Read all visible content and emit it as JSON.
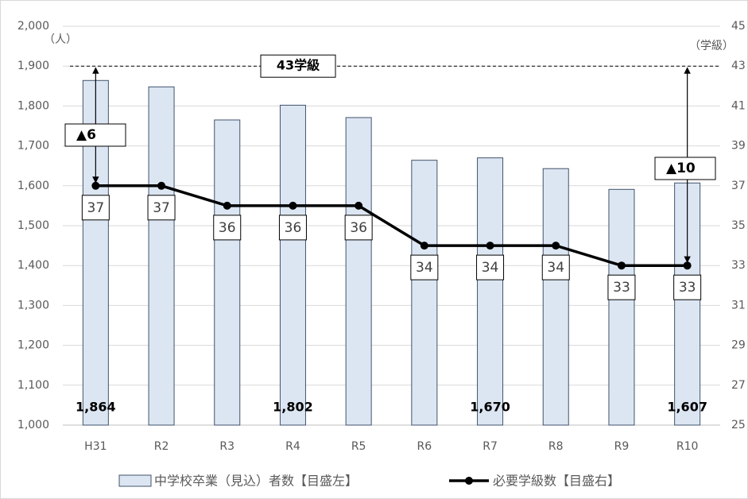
{
  "chart_data": {
    "type": "combo",
    "categories": [
      "H31",
      "R2",
      "R3",
      "R4",
      "R5",
      "R6",
      "R7",
      "R8",
      "R9",
      "R10"
    ],
    "series": [
      {
        "name": "中学校卒業（見込）者数【目盛左】",
        "type": "bar",
        "color": "#dce6f2",
        "stroke": "#41536b",
        "values": [
          1864,
          1848,
          1765,
          1802,
          1771,
          1664,
          1670,
          1643,
          1591,
          1607
        ],
        "value_labels": [
          "1,864",
          null,
          null,
          "1,802",
          null,
          null,
          "1,670",
          null,
          null,
          "1,607"
        ]
      },
      {
        "name": "必要学級数【目盛右】",
        "type": "line",
        "axis": "y2",
        "color": "#000000",
        "values": [
          37,
          37,
          36,
          36,
          36,
          34,
          34,
          34,
          33,
          33
        ]
      }
    ],
    "ylim": [
      1000,
      2000
    ],
    "yticks": [
      {
        "value": 1000,
        "label": "1,000"
      },
      {
        "value": 1100,
        "label": "1,100"
      },
      {
        "value": 1200,
        "label": "1,200"
      },
      {
        "value": 1300,
        "label": "1,300"
      },
      {
        "value": 1400,
        "label": "1,400"
      },
      {
        "value": 1500,
        "label": "1,500"
      },
      {
        "value": 1600,
        "label": "1,600"
      },
      {
        "value": 1700,
        "label": "1,700"
      },
      {
        "value": 1800,
        "label": "1,800"
      },
      {
        "value": 1900,
        "label": "1,900"
      },
      {
        "value": 2000,
        "label": "2,000"
      }
    ],
    "y2lim": [
      25,
      45
    ],
    "y2ticks": [
      25,
      27,
      29,
      31,
      33,
      35,
      37,
      39,
      41,
      43,
      45
    ],
    "y_unit": "（人）",
    "y2_unit": "（学級）",
    "reference": {
      "value": 43,
      "label": "43学級"
    },
    "differences": [
      {
        "label": "▲6"
      },
      {
        "label": "▲10"
      }
    ],
    "grid": true
  }
}
